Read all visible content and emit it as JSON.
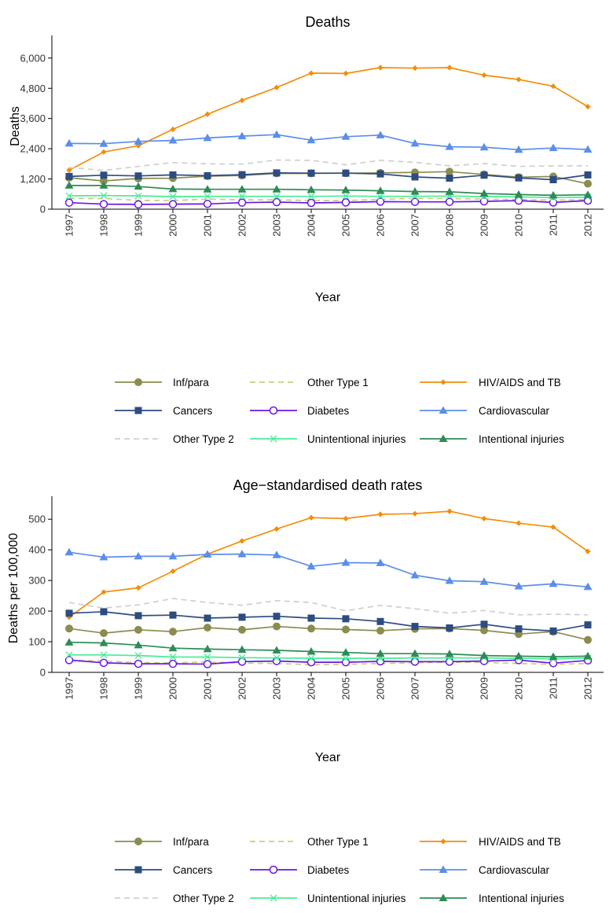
{
  "chart_data": [
    {
      "type": "line",
      "title": "Deaths",
      "xlabel": "Year",
      "ylabel": "Deaths",
      "x": [
        1997,
        1998,
        1999,
        2000,
        2001,
        2002,
        2003,
        2004,
        2005,
        2006,
        2007,
        2008,
        2009,
        2010,
        2011,
        2012
      ],
      "ylim": [
        0,
        6900
      ],
      "yticks": [
        0,
        1200,
        2400,
        3600,
        4800,
        6000
      ],
      "ytick_labels": [
        "0",
        "1,200",
        "2,400",
        "3,600",
        "4,800",
        "6,000"
      ],
      "grid": false,
      "legend_position": "bottom",
      "series": [
        {
          "name": "Inf/para",
          "color": "#8c8c4f",
          "marker": "circle",
          "dash": false,
          "values": [
            1250,
            1120,
            1220,
            1230,
            1310,
            1340,
            1420,
            1420,
            1430,
            1440,
            1460,
            1490,
            1380,
            1270,
            1300,
            1010
          ]
        },
        {
          "name": "Other Type 1",
          "color": "#c9ce7e",
          "marker": "none",
          "dash": true,
          "values": [
            430,
            420,
            350,
            340,
            400,
            370,
            370,
            340,
            340,
            390,
            430,
            420,
            400,
            380,
            360,
            380
          ]
        },
        {
          "name": "HIV/AIDS and TB",
          "color": "#f28e0b",
          "marker": "diamond",
          "dash": false,
          "values": [
            1550,
            2270,
            2520,
            3170,
            3770,
            4320,
            4830,
            5400,
            5390,
            5620,
            5600,
            5620,
            5320,
            5150,
            4880,
            4070
          ]
        },
        {
          "name": "Cancers",
          "color": "#2d4c80",
          "marker": "square",
          "dash": false,
          "values": [
            1300,
            1350,
            1320,
            1360,
            1330,
            1370,
            1440,
            1430,
            1430,
            1400,
            1280,
            1230,
            1350,
            1240,
            1170,
            1360
          ]
        },
        {
          "name": "Diabetes",
          "color": "#6a16e6",
          "marker": "open-circle",
          "dash": false,
          "values": [
            260,
            200,
            190,
            200,
            210,
            260,
            280,
            250,
            270,
            300,
            290,
            290,
            310,
            340,
            270,
            340
          ]
        },
        {
          "name": "Cardiovascular",
          "color": "#5b8ee8",
          "marker": "triangle",
          "dash": false,
          "values": [
            2610,
            2600,
            2690,
            2730,
            2830,
            2900,
            2960,
            2740,
            2880,
            2940,
            2610,
            2480,
            2460,
            2360,
            2430,
            2370
          ]
        },
        {
          "name": "Other Type 2",
          "color": "#cfcfcf",
          "marker": "none",
          "dash": true,
          "values": [
            1660,
            1540,
            1700,
            1850,
            1800,
            1790,
            1950,
            1940,
            1760,
            1940,
            1860,
            1720,
            1810,
            1700,
            1720,
            1720
          ]
        },
        {
          "name": "Unintentional injuries",
          "color": "#4aeb97",
          "marker": "cross",
          "dash": false,
          "values": [
            530,
            540,
            530,
            500,
            510,
            510,
            510,
            510,
            520,
            510,
            510,
            520,
            500,
            490,
            460,
            480
          ]
        },
        {
          "name": "Intentional injuries",
          "color": "#2e8b57",
          "marker": "triangle",
          "dash": false,
          "values": [
            940,
            940,
            900,
            800,
            790,
            790,
            790,
            770,
            760,
            730,
            700,
            690,
            620,
            580,
            550,
            570
          ]
        }
      ]
    },
    {
      "type": "line",
      "title": "Age−standardised death rates",
      "xlabel": "Year",
      "ylabel": "Deaths per 100,000",
      "x": [
        1997,
        1998,
        1999,
        2000,
        2001,
        2002,
        2003,
        2004,
        2005,
        2006,
        2007,
        2008,
        2009,
        2010,
        2011,
        2012
      ],
      "ylim": [
        0,
        575
      ],
      "yticks": [
        0,
        100,
        200,
        300,
        400,
        500
      ],
      "ytick_labels": [
        "0",
        "100",
        "200",
        "300",
        "400",
        "500"
      ],
      "grid": false,
      "legend_position": "bottom",
      "series": [
        {
          "name": "Inf/para",
          "color": "#8c8c4f",
          "marker": "circle",
          "dash": false,
          "values": [
            143,
            128,
            139,
            133,
            146,
            139,
            150,
            143,
            140,
            136,
            142,
            143,
            137,
            125,
            133,
            106
          ]
        },
        {
          "name": "Other Type 1",
          "color": "#c9ce7e",
          "marker": "none",
          "dash": true,
          "values": [
            40,
            37,
            32,
            31,
            34,
            30,
            29,
            25,
            26,
            29,
            31,
            33,
            32,
            29,
            26,
            29
          ]
        },
        {
          "name": "HIV/AIDS and TB",
          "color": "#f28e0b",
          "marker": "diamond",
          "dash": false,
          "values": [
            180,
            262,
            276,
            330,
            386,
            429,
            468,
            505,
            502,
            516,
            518,
            526,
            502,
            487,
            474,
            395
          ]
        },
        {
          "name": "Cancers",
          "color": "#2d4c80",
          "marker": "square",
          "dash": false,
          "values": [
            193,
            198,
            185,
            187,
            177,
            180,
            183,
            177,
            175,
            166,
            150,
            145,
            157,
            142,
            135,
            155
          ]
        },
        {
          "name": "Diabetes",
          "color": "#6a16e6",
          "marker": "open-circle",
          "dash": false,
          "values": [
            40,
            31,
            28,
            28,
            27,
            35,
            37,
            33,
            33,
            36,
            35,
            35,
            37,
            40,
            30,
            39
          ]
        },
        {
          "name": "Cardiovascular",
          "color": "#5b8ee8",
          "marker": "triangle",
          "dash": false,
          "values": [
            392,
            376,
            379,
            379,
            385,
            386,
            383,
            346,
            358,
            357,
            317,
            299,
            296,
            281,
            289,
            279
          ]
        },
        {
          "name": "Other Type 2",
          "color": "#cfcfcf",
          "marker": "none",
          "dash": true,
          "values": [
            228,
            210,
            220,
            241,
            228,
            219,
            234,
            228,
            201,
            219,
            208,
            193,
            202,
            188,
            190,
            188
          ]
        },
        {
          "name": "Unintentional injuries",
          "color": "#4aeb97",
          "marker": "cross",
          "dash": false,
          "values": [
            57,
            57,
            55,
            50,
            50,
            48,
            47,
            46,
            46,
            46,
            47,
            47,
            47,
            46,
            44,
            47
          ]
        },
        {
          "name": "Intentional injuries",
          "color": "#2e8b57",
          "marker": "triangle",
          "dash": false,
          "values": [
            98,
            96,
            89,
            79,
            76,
            74,
            72,
            68,
            65,
            61,
            61,
            60,
            55,
            53,
            51,
            53
          ]
        }
      ]
    }
  ]
}
